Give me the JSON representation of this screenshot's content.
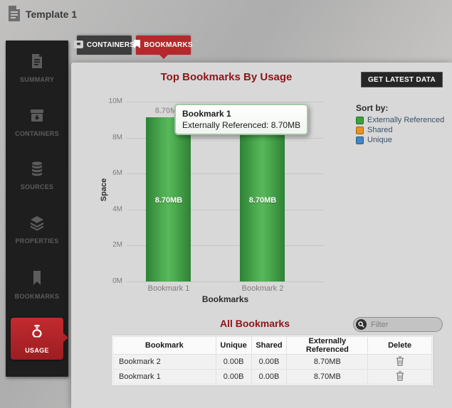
{
  "window": {
    "title": "Template 1"
  },
  "sidebar": {
    "items": [
      {
        "label": "SUMMARY"
      },
      {
        "label": "CONTAINERS"
      },
      {
        "label": "SOURCES"
      },
      {
        "label": "PROPERTIES"
      },
      {
        "label": "BOOKMARKS"
      },
      {
        "label": "USAGE"
      }
    ]
  },
  "tabs": [
    {
      "label": "CONTAINERS"
    },
    {
      "label": "BOOKMARKS"
    }
  ],
  "toolbar": {
    "get_latest_data_label": "GET LATEST DATA"
  },
  "chart_data": {
    "type": "bar",
    "title": "Top Bookmarks By Usage",
    "xlabel": "Bookmarks",
    "ylabel": "Space",
    "categories": [
      "Bookmark 1",
      "Bookmark 2"
    ],
    "series": [
      {
        "name": "Externally Referenced",
        "color": "#3ca03c",
        "values_bytes": [
          9122611,
          9122611
        ],
        "value_labels": [
          "8.70MB",
          "8.70MB"
        ]
      }
    ],
    "ylim": [
      0,
      10000000
    ],
    "yticks": [
      "10M",
      "8M",
      "6M",
      "4M",
      "2M",
      "0M"
    ],
    "grid": true,
    "legend_position": "right",
    "legend_title": "Sort by:",
    "legend": [
      {
        "label": "Externally Referenced",
        "color": "#3ca03c"
      },
      {
        "label": "Shared",
        "color": "#e9921e"
      },
      {
        "label": "Unique",
        "color": "#4185c5"
      }
    ],
    "tooltip": {
      "title": "Bookmark 1",
      "text": "Externally Referenced: 8.70MB"
    }
  },
  "all_bookmarks": {
    "title": "All Bookmarks",
    "filter_placeholder": "Filter",
    "table": {
      "columns": [
        "Bookmark",
        "Unique",
        "Shared",
        "Externally Referenced",
        "Delete"
      ],
      "rows": [
        [
          "Bookmark 2",
          "0.00B",
          "0.00B",
          "8.70MB"
        ],
        [
          "Bookmark 1",
          "0.00B",
          "0.00B",
          "8.70MB"
        ]
      ]
    }
  },
  "colors": {
    "accent_red": "#b5282c",
    "title_red": "#8e1519",
    "bar_green": "#3ca03c",
    "legend_text": "#3a5166",
    "sidebar_bg": "#1e1e1e"
  }
}
